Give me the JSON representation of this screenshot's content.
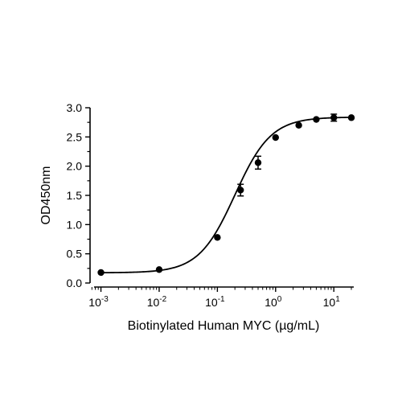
{
  "chart_data": {
    "type": "scatter",
    "title": "",
    "xlabel": "Biotinylated Human MYC (µg/mL)",
    "ylabel": "OD450nm",
    "xscale": "log",
    "xlim": [
      0.00065,
      22
    ],
    "ylim": [
      0,
      3.0
    ],
    "x_ticks": [
      {
        "value": 0.001,
        "base": "10",
        "exp": "-3"
      },
      {
        "value": 0.01,
        "base": "10",
        "exp": "-2"
      },
      {
        "value": 0.1,
        "base": "10",
        "exp": "-1"
      },
      {
        "value": 1,
        "base": "10",
        "exp": "0"
      },
      {
        "value": 10,
        "base": "10",
        "exp": "1"
      }
    ],
    "y_ticks": [
      {
        "value": 0.0,
        "label": "0.0"
      },
      {
        "value": 0.5,
        "label": "0.5"
      },
      {
        "value": 1.0,
        "label": "1.0"
      },
      {
        "value": 1.5,
        "label": "1.5"
      },
      {
        "value": 2.0,
        "label": "2.0"
      },
      {
        "value": 2.5,
        "label": "2.5"
      },
      {
        "value": 3.0,
        "label": "3.0"
      }
    ],
    "grid": false,
    "legend": "none",
    "series": [
      {
        "marker": "circle",
        "color": "#000000",
        "points": [
          {
            "x": 0.001,
            "y": 0.18,
            "err": 0.0
          },
          {
            "x": 0.01,
            "y": 0.23,
            "err": 0.0
          },
          {
            "x": 0.1,
            "y": 0.78,
            "err": 0.0
          },
          {
            "x": 0.25,
            "y": 1.59,
            "err": 0.1
          },
          {
            "x": 0.5,
            "y": 2.06,
            "err": 0.11
          },
          {
            "x": 1,
            "y": 2.49,
            "err": 0.0
          },
          {
            "x": 2.5,
            "y": 2.7,
            "err": 0.0
          },
          {
            "x": 5,
            "y": 2.8,
            "err": 0.0
          },
          {
            "x": 10,
            "y": 2.83,
            "err": 0.06
          },
          {
            "x": 20,
            "y": 2.83,
            "err": 0.0
          }
        ]
      }
    ],
    "fit": {
      "type": "4PL",
      "bottom": 0.175,
      "top": 2.84,
      "ec50": 0.2,
      "hill": 1.4
    }
  }
}
